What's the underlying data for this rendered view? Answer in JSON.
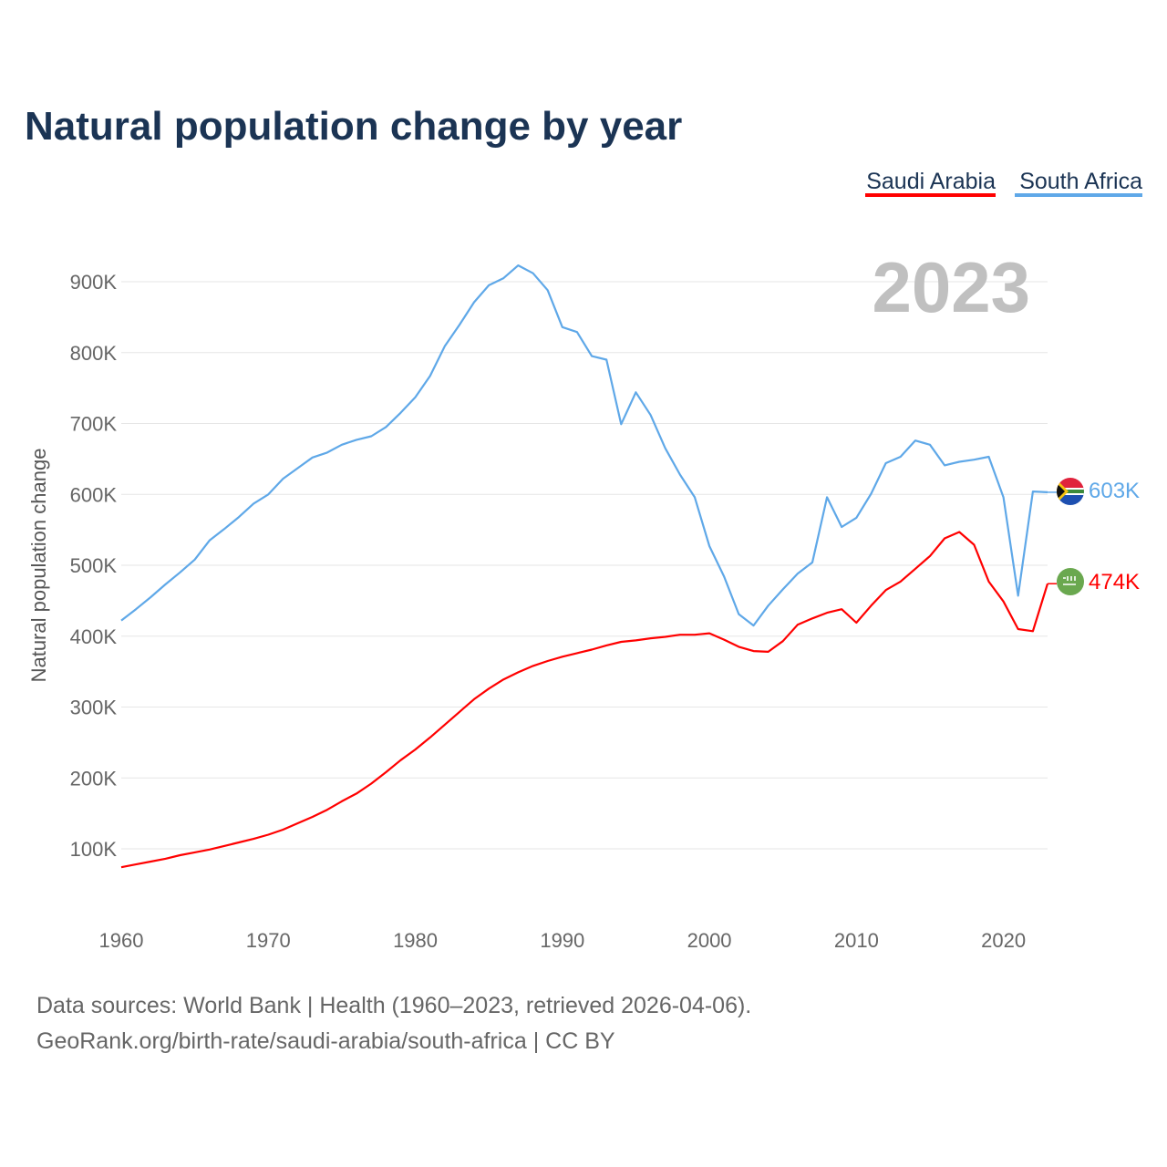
{
  "chart_data": {
    "type": "line",
    "title": "Natural population change by year",
    "xlabel": "",
    "ylabel": "Natural population change",
    "xlim": [
      1960,
      2023
    ],
    "ylim": [
      0,
      950000
    ],
    "grid": true,
    "legend_position": "top-right",
    "current_year_label": "2023",
    "x_ticks": [
      "1960",
      "1970",
      "1980",
      "1990",
      "2000",
      "2010",
      "2020"
    ],
    "y_ticks": [
      {
        "value": 100000,
        "label": "100K"
      },
      {
        "value": 200000,
        "label": "200K"
      },
      {
        "value": 300000,
        "label": "300K"
      },
      {
        "value": 400000,
        "label": "400K"
      },
      {
        "value": 500000,
        "label": "500K"
      },
      {
        "value": 600000,
        "label": "600K"
      },
      {
        "value": 700000,
        "label": "700K"
      },
      {
        "value": 800000,
        "label": "800K"
      },
      {
        "value": 900000,
        "label": "900K"
      }
    ],
    "x_start": 1960,
    "series": [
      {
        "name": "Saudi Arabia",
        "color": "#ff0000",
        "end_label": "474K",
        "flag": "saudi-arabia-flag",
        "values": [
          74,
          78,
          82,
          86,
          91,
          95,
          99,
          104,
          109,
          114,
          120,
          127,
          136,
          145,
          155,
          167,
          178,
          192,
          208,
          225,
          240,
          257,
          275,
          293,
          311,
          326,
          339,
          349,
          358,
          365,
          371,
          376,
          381,
          387,
          392,
          394,
          397,
          399,
          402,
          402,
          404,
          395,
          385,
          379,
          378,
          393,
          416,
          425,
          433,
          438,
          419,
          443,
          465,
          477,
          495,
          513,
          538,
          547,
          529,
          477,
          449,
          410,
          407,
          474
        ]
      },
      {
        "name": "South Africa",
        "color": "#5fa8e8",
        "end_label": "603K",
        "flag": "south-africa-flag",
        "values": [
          422,
          438,
          455,
          473,
          490,
          508,
          535,
          551,
          568,
          587,
          600,
          622,
          637,
          652,
          659,
          670,
          677,
          682,
          695,
          715,
          737,
          767,
          809,
          839,
          871,
          895,
          905,
          923,
          912,
          888,
          836,
          829,
          795,
          790,
          699,
          744,
          712,
          665,
          628,
          596,
          527,
          484,
          431,
          415,
          443,
          466,
          488,
          504,
          596,
          554,
          567,
          601,
          644,
          653,
          676,
          670,
          641,
          646,
          649,
          653,
          596,
          457,
          604,
          603
        ]
      }
    ],
    "value_unit": "thousands"
  },
  "footer": {
    "line1": "Data sources: World Bank | Health (1960–2023, retrieved 2026-04-06).",
    "line2": "GeoRank.org/birth-rate/saudi-arabia/south-africa | CC BY"
  }
}
